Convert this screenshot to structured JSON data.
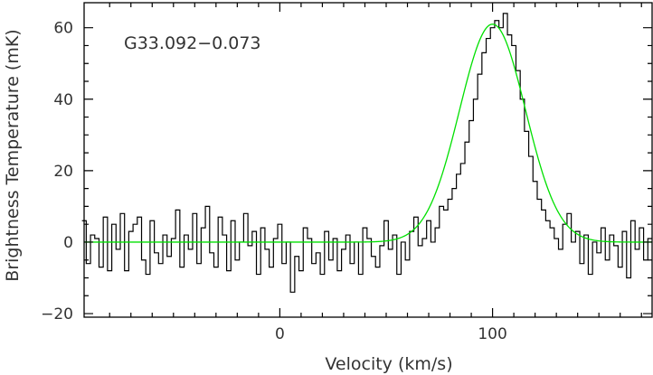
{
  "chart_data": {
    "type": "line",
    "title": "",
    "xlabel": "Velocity (km/s)",
    "ylabel": "Brightness Temperature (mK)",
    "xlim": [
      -92,
      175
    ],
    "ylim": [
      -21,
      67
    ],
    "xticks": [
      0,
      100
    ],
    "yticks": [
      -20,
      0,
      20,
      40,
      60
    ],
    "grid": false,
    "legend": "none",
    "annotation": "G33.092−0.073",
    "colors": {
      "observed": "#000000",
      "fit": "#00e000"
    },
    "series": [
      {
        "style": "step",
        "color": "#000000",
        "x": [
          -92,
          -90,
          -88,
          -86,
          -84,
          -82,
          -80,
          -78,
          -76,
          -74,
          -72,
          -70,
          -68,
          -66,
          -64,
          -62,
          -60,
          -58,
          -56,
          -54,
          -52,
          -50,
          -48,
          -46,
          -44,
          -42,
          -40,
          -38,
          -36,
          -34,
          -32,
          -30,
          -28,
          -26,
          -24,
          -22,
          -20,
          -18,
          -16,
          -14,
          -12,
          -10,
          -8,
          -6,
          -4,
          -2,
          0,
          2,
          4,
          6,
          8,
          10,
          12,
          14,
          16,
          18,
          20,
          22,
          24,
          26,
          28,
          30,
          32,
          34,
          36,
          38,
          40,
          42,
          44,
          46,
          48,
          50,
          52,
          54,
          56,
          58,
          60,
          62,
          64,
          66,
          68,
          70,
          72,
          74,
          76,
          78,
          80,
          82,
          84,
          86,
          88,
          90,
          92,
          94,
          96,
          98,
          100,
          102,
          104,
          106,
          108,
          110,
          112,
          114,
          116,
          118,
          120,
          122,
          124,
          126,
          128,
          130,
          132,
          134,
          136,
          138,
          140,
          142,
          144,
          146,
          148,
          150,
          152,
          154,
          156,
          158,
          160,
          162,
          164,
          166,
          168,
          170,
          172,
          174
        ],
        "values": [
          6,
          -6,
          2,
          1,
          -7,
          7,
          -8,
          5,
          -2,
          8,
          -8,
          3,
          5,
          7,
          -5,
          -9,
          6,
          -3,
          -6,
          2,
          -4,
          1,
          9,
          -7,
          2,
          -2,
          8,
          -6,
          4,
          10,
          -3,
          -7,
          7,
          2,
          -8,
          6,
          -5,
          0,
          8,
          -1,
          3,
          -9,
          4,
          -2,
          -7,
          1,
          5,
          -6,
          0,
          -14,
          -4,
          -8,
          4,
          1,
          -6,
          -3,
          -9,
          3,
          -5,
          1,
          -8,
          -2,
          2,
          -6,
          0,
          -9,
          4,
          1,
          -4,
          -7,
          -1,
          6,
          -2,
          2,
          -9,
          0,
          -5,
          3,
          7,
          -1,
          1,
          6,
          0,
          4,
          10,
          9,
          12,
          15,
          19,
          22,
          28,
          34,
          40,
          47,
          53,
          57,
          60,
          62,
          60,
          64,
          58,
          55,
          48,
          40,
          31,
          24,
          17,
          12,
          9,
          6,
          4,
          1,
          -2,
          5,
          8,
          0,
          3,
          -6,
          2,
          -9,
          0,
          -3,
          4,
          -5,
          2,
          -1,
          -7,
          3,
          -10,
          6,
          -2,
          4,
          -5,
          1
        ]
      },
      {
        "style": "line",
        "color": "#00e000",
        "fit": {
          "amplitude": 61,
          "center": 100,
          "fwhm": 36.5,
          "baseline": 0
        }
      }
    ]
  }
}
